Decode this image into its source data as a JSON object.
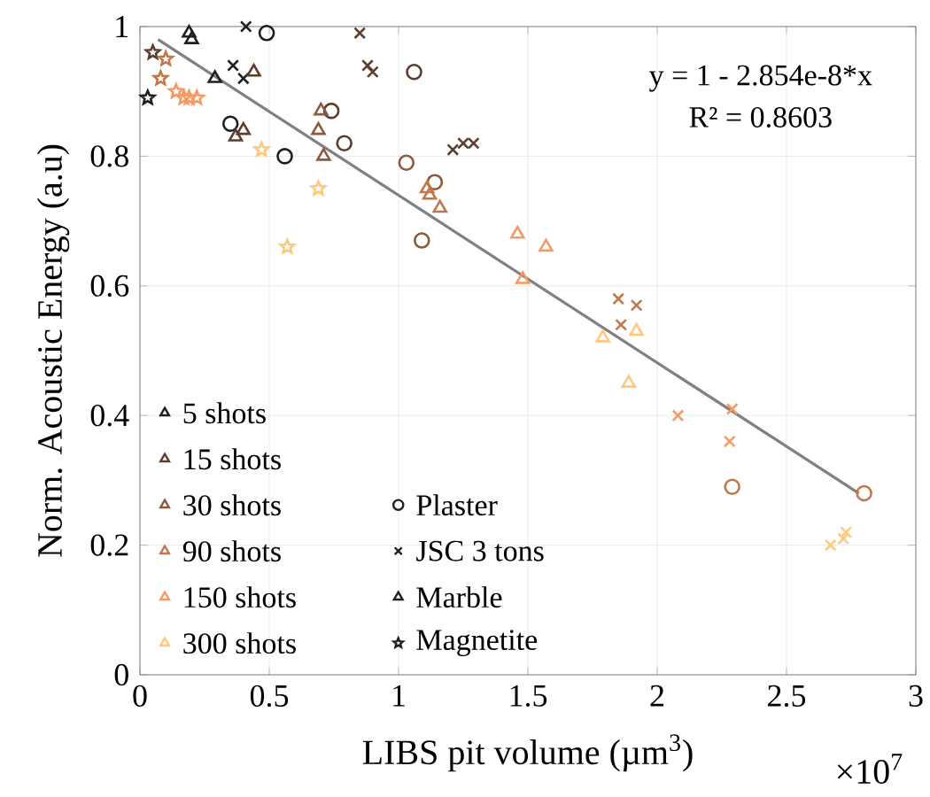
{
  "chart_data": {
    "type": "scatter",
    "xlabel": "LIBS pit volume (µm$^{3}$)",
    "ylabel": "Norm. Acoustic Energy (a.u)",
    "xlim": [
      0,
      3
    ],
    "ylim": [
      0,
      1
    ],
    "xticks": [
      0,
      0.5,
      1,
      1.5,
      2,
      2.5,
      3
    ],
    "yticks": [
      0,
      0.2,
      0.4,
      0.6,
      0.8,
      1
    ],
    "grid": true,
    "legend": "bottom left",
    "annotations": [
      "y = 1 - 2.854e-8*x",
      "R² = 0.8603",
      "×10$^{7}$"
    ],
    "series": [
      {
        "name": "5 shots",
        "color": "#1f1f1f",
        "marker": "triangle"
      },
      {
        "name": "15 shots",
        "color": "#5c3d2e",
        "marker": "triangle"
      },
      {
        "name": "30 shots",
        "color": "#8c5a3c",
        "marker": "triangle"
      },
      {
        "name": "90 shots",
        "color": "#c0784a",
        "marker": "triangle"
      },
      {
        "name": "150 shots",
        "color": "#f59a62",
        "marker": "triangle"
      },
      {
        "name": "300 shots",
        "color": "#ffc87a",
        "marker": "triangle"
      },
      {
        "name": "Plaster",
        "color": "#1f1f1f",
        "marker": "circle",
        "x": [
          0.49,
          0.35,
          0.56,
          1.06,
          0.74,
          0.79,
          1.03,
          1.14,
          1.09,
          2.29,
          2.8
        ],
        "values": [
          0.99,
          0.85,
          0.8,
          0.93,
          0.87,
          0.82,
          0.79,
          0.76,
          0.67,
          0.29,
          0.28
        ],
        "colors": [
          "#1f1f1f",
          "#1f1f1f",
          "#1f1f1f",
          "#5c3d2e",
          "#5c3d2e",
          "#5c3d2e",
          "#8c5a3c",
          "#8c5a3c",
          "#8c5a3c",
          "#c0784a",
          "#c0784a"
        ]
      },
      {
        "name": "JSC 3 tons",
        "color": "#1f1f1f",
        "marker": "cross",
        "x": [
          0.41,
          0.36,
          0.4,
          0.85,
          0.88,
          0.9,
          1.21,
          1.25,
          1.29,
          1.85,
          1.92,
          1.86,
          2.08,
          2.29,
          2.28,
          2.67,
          2.72,
          2.73
        ],
        "values": [
          1.0,
          0.94,
          0.92,
          0.99,
          0.94,
          0.93,
          0.81,
          0.82,
          0.82,
          0.58,
          0.57,
          0.54,
          0.4,
          0.41,
          0.36,
          0.2,
          0.21,
          0.22
        ],
        "colors": [
          "#1f1f1f",
          "#1f1f1f",
          "#1f1f1f",
          "#5c3d2e",
          "#5c3d2e",
          "#5c3d2e",
          "#5c3d2e",
          "#5c3d2e",
          "#5c3d2e",
          "#c0784a",
          "#c0784a",
          "#c0784a",
          "#f59a62",
          "#f59a62",
          "#f59a62",
          "#ffc87a",
          "#ffc87a",
          "#ffc87a"
        ]
      },
      {
        "name": "Marble",
        "color": "#1f1f1f",
        "marker": "triangle",
        "x": [
          0.19,
          0.2,
          0.29,
          0.44,
          0.37,
          0.4,
          0.7,
          0.69,
          0.71,
          1.11,
          1.12,
          1.16,
          1.46,
          1.48,
          1.57,
          1.79,
          1.92,
          1.89
        ],
        "values": [
          0.99,
          0.98,
          0.92,
          0.93,
          0.83,
          0.84,
          0.87,
          0.84,
          0.8,
          0.75,
          0.74,
          0.72,
          0.68,
          0.61,
          0.66,
          0.52,
          0.53,
          0.45
        ],
        "colors": [
          "#1f1f1f",
          "#1f1f1f",
          "#1f1f1f",
          "#5c3d2e",
          "#5c3d2e",
          "#5c3d2e",
          "#8c5a3c",
          "#8c5a3c",
          "#8c5a3c",
          "#c0784a",
          "#c0784a",
          "#c0784a",
          "#f59a62",
          "#f59a62",
          "#f59a62",
          "#ffc87a",
          "#ffc87a",
          "#ffc87a"
        ]
      },
      {
        "name": "Magnetite",
        "color": "#1f1f1f",
        "marker": "star",
        "x": [
          0.03,
          0.05,
          0.08,
          0.1,
          0.14,
          0.17,
          0.19,
          0.22,
          0.47,
          0.69,
          0.57
        ],
        "values": [
          0.89,
          0.96,
          0.92,
          0.95,
          0.9,
          0.89,
          0.89,
          0.89,
          0.81,
          0.75,
          0.66
        ],
        "colors": [
          "#1f1f1f",
          "#5c3d2e",
          "#c0784a",
          "#c0784a",
          "#f59a62",
          "#f59a62",
          "#f59a62",
          "#f59a62",
          "#ffc87a",
          "#ffc87a",
          "#ffc87a"
        ]
      },
      {
        "type": "line",
        "color": "#808080",
        "marker": "none",
        "x": [
          0.07,
          2.78
        ],
        "values": [
          0.98,
          0.28
        ]
      }
    ]
  }
}
